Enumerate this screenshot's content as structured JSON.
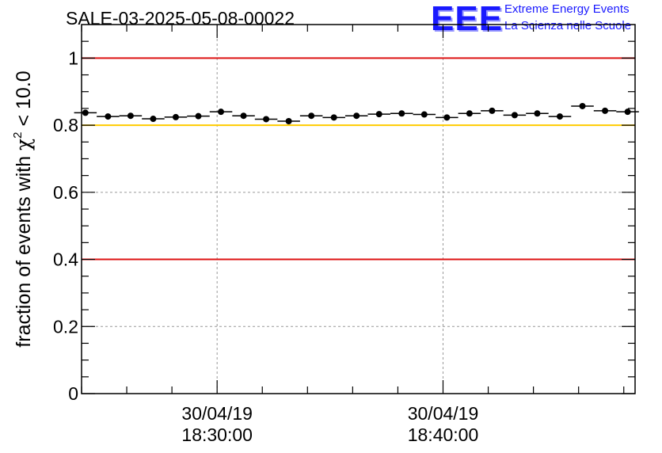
{
  "header": {
    "run_title": "SALE-03-2025-05-08-00022",
    "logo_text": "EEE",
    "org_line1": "Extreme Energy Events",
    "org_line2": "La Scienza nelle Scuole"
  },
  "colors": {
    "red_line": "#dd1111",
    "yellow_line": "#ffcc00",
    "marker": "#000000",
    "grid": "#999999",
    "logo": "#1a1aff"
  },
  "chart_data": {
    "type": "scatter",
    "title": "SALE-03-2025-05-08-00022",
    "ylabel_prefix": "fraction of events with ",
    "ylabel_symbol": "χ",
    "ylabel_exponent": "2",
    "ylabel_suffix": " < 10.0",
    "xlabel": "",
    "ylim": [
      0,
      1.1
    ],
    "yticks": [
      0,
      0.2,
      0.4,
      0.6,
      0.8,
      1
    ],
    "ytick_labels": [
      "0",
      "0.2",
      "0.4",
      "0.6",
      "0.8",
      "1"
    ],
    "xlim_minutes": [
      0,
      24.5
    ],
    "xticks": [
      {
        "minute": 6,
        "label_date": "30/04/19",
        "label_time": "18:30:00"
      },
      {
        "minute": 16,
        "label_date": "30/04/19",
        "label_time": "18:40:00"
      }
    ],
    "grid": true,
    "reference_lines": [
      {
        "y": 1.0,
        "color": "red"
      },
      {
        "y": 0.8,
        "color": "yellow"
      },
      {
        "y": 0.4,
        "color": "red"
      }
    ],
    "series": [
      {
        "name": "fraction",
        "x_minutes": [
          0.17,
          1.17,
          2.17,
          3.17,
          4.17,
          5.17,
          6.17,
          7.17,
          8.17,
          9.17,
          10.17,
          11.17,
          12.17,
          13.17,
          14.17,
          15.17,
          16.17,
          17.17,
          18.17,
          19.17,
          20.17,
          21.17,
          22.17,
          23.17,
          24.17
        ],
        "values": [
          0.837,
          0.826,
          0.828,
          0.819,
          0.824,
          0.827,
          0.84,
          0.828,
          0.818,
          0.812,
          0.828,
          0.823,
          0.828,
          0.833,
          0.835,
          0.832,
          0.823,
          0.835,
          0.843,
          0.83,
          0.835,
          0.826,
          0.857,
          0.843,
          0.84
        ]
      }
    ]
  }
}
